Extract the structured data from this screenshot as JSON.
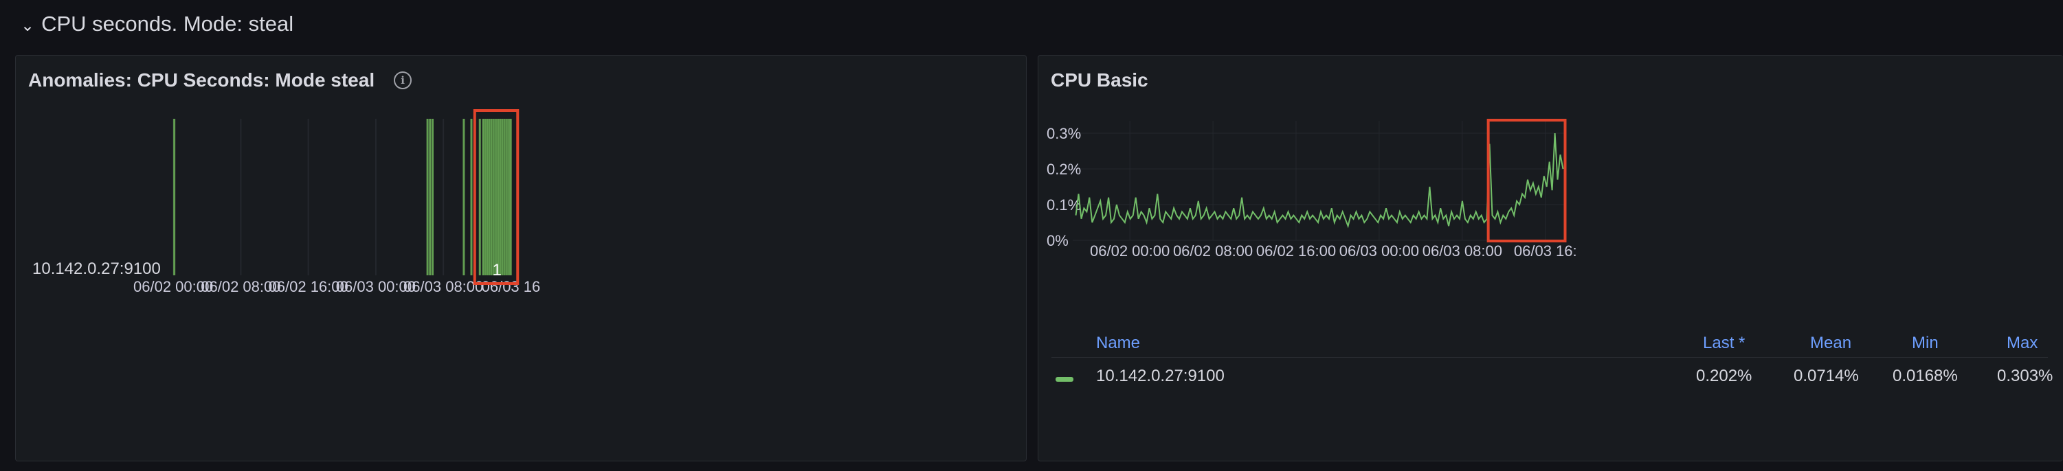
{
  "row": {
    "title": "CPU seconds. Mode: steal",
    "chevron": "chevron-down-icon"
  },
  "left_panel": {
    "title": "Anomalies: CPU Seconds: Mode steal",
    "info_icon": "info-icon",
    "series_label": "10.142.0.27:9100",
    "value_label": "1",
    "x_ticks": [
      "06/02 00:00",
      "06/02 08:00",
      "06/02 16:00",
      "06/03 00:00",
      "06/03 08:00",
      "06/03 16"
    ],
    "highlight_color": "#e0442b",
    "bar_color": "#629e51"
  },
  "right_panel": {
    "title": "CPU Basic",
    "y_ticks": [
      "0.3%",
      "0.2%",
      "0.1%",
      "0%"
    ],
    "x_ticks": [
      "06/02 00:00",
      "06/02 08:00",
      "06/02 16:00",
      "06/03 00:00",
      "06/03 08:00",
      "06/03 16:"
    ],
    "line_color": "#73bf69",
    "legend": {
      "headers": {
        "name": "Name",
        "last": "Last *",
        "mean": "Mean",
        "min": "Min",
        "max": "Max"
      },
      "rows": [
        {
          "name": "10.142.0.27:9100",
          "last": "0.202%",
          "mean": "0.0714%",
          "min": "0.0168%",
          "max": "0.303%"
        }
      ]
    }
  },
  "chart_data": [
    {
      "type": "state-timeline",
      "title": "Anomalies: CPU Seconds: Mode steal",
      "series": [
        {
          "name": "10.142.0.27:9100",
          "value_label": "1"
        }
      ],
      "x_range": [
        "06/01 20:00",
        "06/03 18:00"
      ],
      "x_ticks": [
        "06/02 00:00",
        "06/02 08:00",
        "06/02 16:00",
        "06/03 00:00",
        "06/03 08:00",
        "06/03 16"
      ],
      "anomaly_times_hours": [
        4.0,
        34.0,
        34.3,
        34.6,
        38.3,
        39.2,
        40.2,
        40.9,
        41.2
      ],
      "anomaly_blocks_hours": [
        [
          40.6,
          44.1
        ]
      ]
    },
    {
      "type": "line",
      "title": "CPU Basic",
      "x_range": [
        "06/01 18:30",
        "06/03 18:00"
      ],
      "x_ticks": [
        "06/02 00:00",
        "06/02 08:00",
        "06/02 16:00",
        "06/03 00:00",
        "06/03 08:00",
        "06/03 16:"
      ],
      "ylim": [
        0,
        0.33
      ],
      "y_unit": "%",
      "series": [
        {
          "name": "10.142.0.27:9100",
          "last": 0.202,
          "mean": 0.0714,
          "min": 0.0168,
          "max": 0.303,
          "values_pct": [
            0.07,
            0.13,
            0.06,
            0.09,
            0.08,
            0.12,
            0.05,
            0.07,
            0.09,
            0.11,
            0.06,
            0.07,
            0.12,
            0.05,
            0.06,
            0.1,
            0.07,
            0.06,
            0.05,
            0.08,
            0.06,
            0.07,
            0.12,
            0.06,
            0.08,
            0.07,
            0.05,
            0.09,
            0.06,
            0.07,
            0.13,
            0.06,
            0.05,
            0.08,
            0.07,
            0.06,
            0.09,
            0.07,
            0.06,
            0.08,
            0.07,
            0.06,
            0.09,
            0.06,
            0.07,
            0.11,
            0.06,
            0.07,
            0.09,
            0.06,
            0.07,
            0.08,
            0.06,
            0.07,
            0.06,
            0.08,
            0.07,
            0.06,
            0.09,
            0.06,
            0.07,
            0.12,
            0.06,
            0.07,
            0.06,
            0.08,
            0.07,
            0.06,
            0.07,
            0.09,
            0.06,
            0.07,
            0.06,
            0.08,
            0.05,
            0.06,
            0.07,
            0.06,
            0.08,
            0.06,
            0.07,
            0.06,
            0.05,
            0.07,
            0.06,
            0.08,
            0.06,
            0.07,
            0.06,
            0.05,
            0.08,
            0.06,
            0.07,
            0.06,
            0.09,
            0.05,
            0.07,
            0.06,
            0.08,
            0.06,
            0.04,
            0.07,
            0.06,
            0.08,
            0.06,
            0.07,
            0.05,
            0.06,
            0.08,
            0.07,
            0.06,
            0.05,
            0.07,
            0.06,
            0.09,
            0.06,
            0.07,
            0.06,
            0.05,
            0.08,
            0.06,
            0.07,
            0.06,
            0.05,
            0.07,
            0.06,
            0.08,
            0.06,
            0.07,
            0.06,
            0.15,
            0.06,
            0.07,
            0.05,
            0.09,
            0.06,
            0.07,
            0.04,
            0.08,
            0.06,
            0.07,
            0.06,
            0.11,
            0.06,
            0.05,
            0.07,
            0.06,
            0.08,
            0.06,
            0.07,
            0.05,
            0.06,
            0.27,
            0.07,
            0.06,
            0.08,
            0.05,
            0.07,
            0.06,
            0.08,
            0.09,
            0.07,
            0.11,
            0.1,
            0.13,
            0.12,
            0.17,
            0.14,
            0.16,
            0.13,
            0.15,
            0.12,
            0.18,
            0.15,
            0.22,
            0.14,
            0.3,
            0.17,
            0.24,
            0.2
          ]
        }
      ]
    }
  ]
}
